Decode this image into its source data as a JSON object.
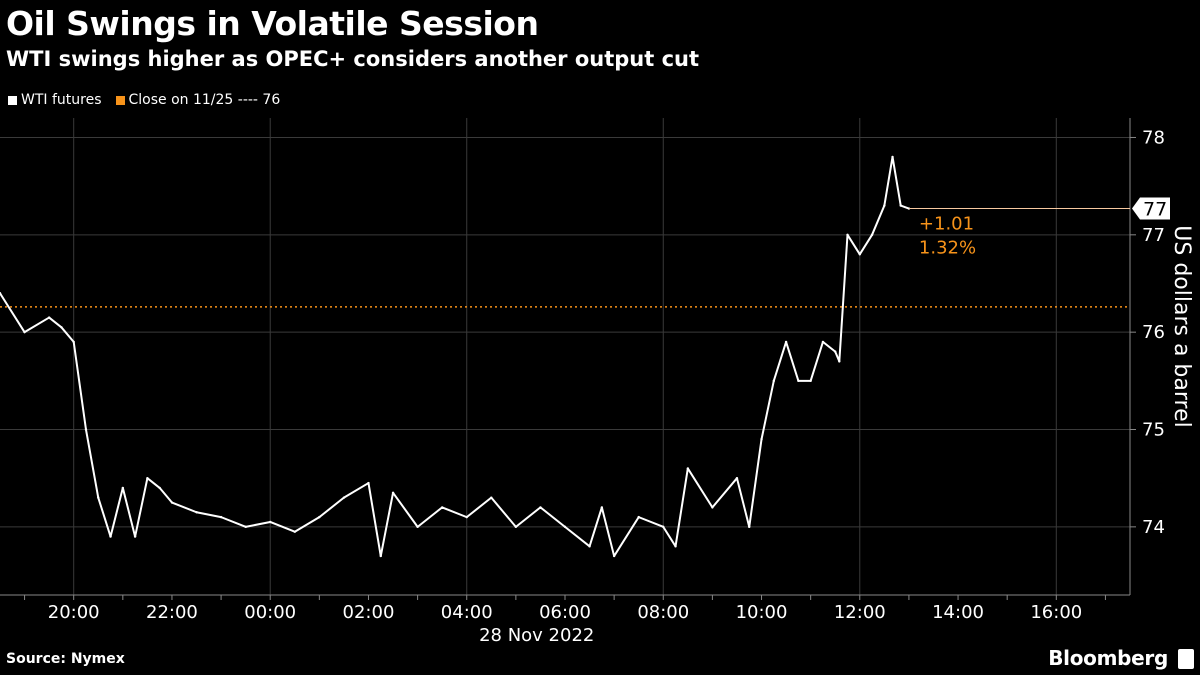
{
  "chart_data": {
    "type": "line",
    "title": "Oil Swings in Volatile Session",
    "subtitle": "WTI swings higher as OPEC+ considers another output cut",
    "series": [
      {
        "name": "WTI futures",
        "color": "#ffffff",
        "x": [
          "18:30",
          "19:00",
          "19:30",
          "19:45",
          "20:00",
          "20:15",
          "20:30",
          "20:45",
          "21:00",
          "21:15",
          "21:30",
          "21:45",
          "22:00",
          "22:30",
          "23:00",
          "23:30",
          "00:00",
          "00:30",
          "01:00",
          "01:30",
          "02:00",
          "02:15",
          "02:30",
          "03:00",
          "03:30",
          "04:00",
          "04:30",
          "05:00",
          "05:30",
          "06:00",
          "06:30",
          "06:45",
          "07:00",
          "07:30",
          "08:00",
          "08:15",
          "08:30",
          "09:00",
          "09:30",
          "09:45",
          "10:00",
          "10:15",
          "10:30",
          "10:45",
          "11:00",
          "11:15",
          "11:30",
          "11:35",
          "11:45",
          "12:00",
          "12:15",
          "12:30",
          "12:40",
          "12:50",
          "13:00"
        ],
        "values": [
          76.4,
          76.0,
          76.15,
          76.05,
          75.9,
          75.0,
          74.3,
          73.9,
          74.4,
          73.9,
          74.5,
          74.4,
          74.25,
          74.15,
          74.1,
          74.0,
          74.05,
          73.95,
          74.1,
          74.3,
          74.45,
          73.7,
          74.35,
          74.0,
          74.2,
          74.1,
          74.3,
          74.0,
          74.2,
          74.0,
          73.8,
          74.2,
          73.7,
          74.1,
          74.0,
          73.8,
          74.6,
          74.2,
          74.5,
          74.0,
          74.9,
          75.5,
          75.9,
          75.5,
          75.5,
          75.9,
          75.8,
          75.7,
          77.0,
          76.8,
          77.0,
          77.3,
          77.8,
          77.3,
          77.27
        ]
      }
    ],
    "reference_line": {
      "name": "Close on 11/25",
      "value": 76.26,
      "color": "#f7931a"
    },
    "last_value_label": "77",
    "change_labels": [
      "+1.01",
      "1.32%"
    ],
    "x_ticks": [
      "20:00",
      "22:00",
      "00:00",
      "02:00",
      "04:00",
      "06:00",
      "08:00",
      "10:00",
      "12:00",
      "14:00",
      "16:00"
    ],
    "x_date_label": "28 Nov 2022",
    "y_ticks": [
      74,
      75,
      76,
      77,
      78
    ],
    "ylim": [
      73.3,
      78.2
    ],
    "ylabel": "US dollars a barrel",
    "grid": true
  },
  "legend": {
    "series_label": "WTI futures",
    "reference_label": "Close on 11/25 ---- 76"
  },
  "footer": {
    "source": "Source: Nymex",
    "brand": "Bloomberg"
  }
}
